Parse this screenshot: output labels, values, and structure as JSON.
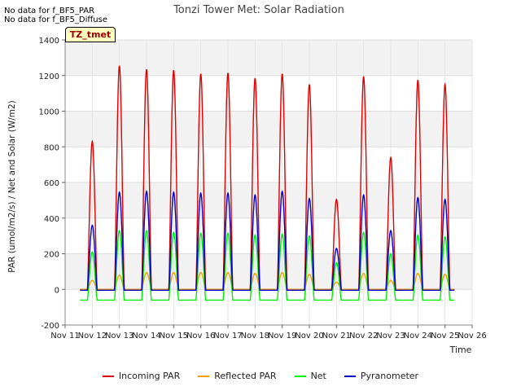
{
  "notes": [
    "No data for f_BF5_PAR",
    "No data for f_BF5_Diffuse"
  ],
  "badge": "TZ_tmet",
  "chart_data": {
    "type": "line",
    "title": "Tonzi Tower Met: Solar Radiation",
    "xlabel": "Time",
    "ylabel": "PAR (umol/m2/s) / Net and Solar (W/m2)",
    "ylim": [
      -200,
      1400
    ],
    "yticks": [
      -200,
      0,
      200,
      400,
      600,
      800,
      1000,
      1200,
      1400
    ],
    "xlim": [
      11,
      26
    ],
    "xticks": [
      "Nov 11",
      "Nov 12",
      "Nov 13",
      "Nov 14",
      "Nov 15",
      "Nov 16",
      "Nov 17",
      "Nov 18",
      "Nov 19",
      "Nov 20",
      "Nov 21",
      "Nov 22",
      "Nov 23",
      "Nov 24",
      "Nov 25",
      "Nov 26"
    ],
    "grid": true,
    "legend_position": "bottom",
    "day_peaks": [
      11.5,
      12.5,
      13.5,
      14.5,
      15.5,
      16.5,
      17.5,
      18.5,
      19.5,
      20.5,
      21.5,
      22.5,
      23.5,
      24.5
    ],
    "series": [
      {
        "name": "Incoming PAR",
        "color": "#e00000",
        "night": 0,
        "peaks": [
          830,
          1255,
          1235,
          1230,
          1210,
          1215,
          1185,
          1210,
          1150,
          505,
          1195,
          740,
          1175,
          1150
        ]
      },
      {
        "name": "Reflected PAR",
        "color": "#f0a000",
        "night": 0,
        "peaks": [
          50,
          80,
          95,
          95,
          95,
          95,
          90,
          95,
          85,
          40,
          90,
          50,
          90,
          85
        ]
      },
      {
        "name": "Net",
        "color": "#00ee00",
        "night": -60,
        "peaks": [
          210,
          330,
          330,
          320,
          315,
          315,
          305,
          310,
          300,
          150,
          320,
          200,
          305,
          295
        ]
      },
      {
        "name": "Pyranometer",
        "color": "#0000cc",
        "night": -5,
        "peaks": [
          360,
          545,
          550,
          545,
          540,
          540,
          530,
          550,
          510,
          230,
          530,
          330,
          515,
          505
        ]
      }
    ]
  }
}
